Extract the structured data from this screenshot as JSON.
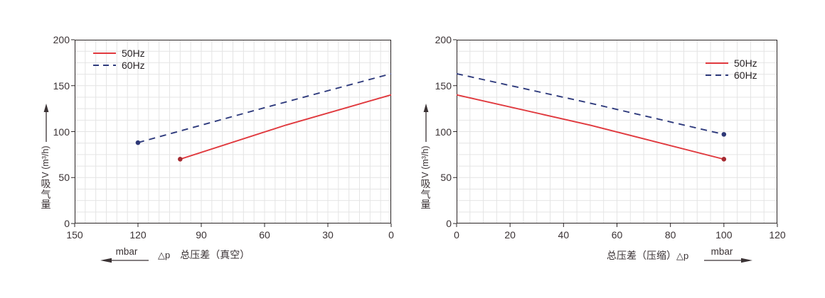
{
  "colors": {
    "red_line": "#e0393e",
    "red_marker": "#a62b32",
    "navy_line": "#2f3b7d",
    "navy_marker": "#2e3877",
    "grid": "#e4e4e4",
    "axis_frame": "#2a2425",
    "text": "#3a3234"
  },
  "chart_data": [
    {
      "id": "vacuum-curve",
      "type": "line",
      "title": "",
      "y_axis": {
        "title_cjk": "吸气量",
        "title_unit": "V (m³/h)",
        "range": [
          0,
          200
        ],
        "ticks": [
          0,
          50,
          100,
          150,
          200
        ]
      },
      "x_axis": {
        "prefix": "△p",
        "label": "总压差（真空）",
        "unit": "mbar",
        "arrow_direction": "left",
        "range": [
          150,
          0
        ],
        "ticks": [
          150,
          120,
          90,
          60,
          30,
          0
        ]
      },
      "grid": {
        "x_step": 5,
        "y_step": 12.5
      },
      "legend": {
        "position": "top-left",
        "items": [
          {
            "label": "50Hz",
            "color": "#e0393e",
            "style": "solid"
          },
          {
            "label": "60Hz",
            "color": "#2f3b7d",
            "style": "dashed"
          }
        ]
      },
      "series": [
        {
          "name": "50Hz",
          "color": "#e0393e",
          "dash": null,
          "marker_point": [
            100,
            70
          ],
          "marker_color": "#a62b32",
          "points": [
            [
              100,
              70
            ],
            [
              50,
              107
            ],
            [
              0,
              140
            ]
          ]
        },
        {
          "name": "60Hz",
          "color": "#2f3b7d",
          "dash": "9 7",
          "marker_point": [
            120,
            88
          ],
          "marker_color": "#2e3877",
          "points": [
            [
              120,
              88
            ],
            [
              60,
              126
            ],
            [
              0,
              163
            ]
          ]
        }
      ]
    },
    {
      "id": "compression-curve",
      "type": "line",
      "title": "",
      "y_axis": {
        "title_cjk": "吸气量",
        "title_unit": "V (m³/h)",
        "range": [
          0,
          200
        ],
        "ticks": [
          0,
          50,
          100,
          150,
          200
        ]
      },
      "x_axis": {
        "label": "总压差（压缩）",
        "suffix": "△p",
        "unit": "mbar",
        "arrow_direction": "right",
        "range": [
          0,
          120
        ],
        "ticks": [
          0,
          20,
          40,
          60,
          80,
          100,
          120
        ]
      },
      "grid": {
        "x_step": 5,
        "y_step": 12.5
      },
      "legend": {
        "position": "top-right",
        "items": [
          {
            "label": "50Hz",
            "color": "#e0393e",
            "style": "solid"
          },
          {
            "label": "60Hz",
            "color": "#2f3b7d",
            "style": "dashed"
          }
        ]
      },
      "series": [
        {
          "name": "50Hz",
          "color": "#e0393e",
          "dash": null,
          "marker_point": [
            100,
            70
          ],
          "marker_color": "#a62b32",
          "points": [
            [
              0,
              140
            ],
            [
              50,
              107
            ],
            [
              100,
              70
            ]
          ]
        },
        {
          "name": "60Hz",
          "color": "#2f3b7d",
          "dash": "9 7",
          "marker_point": [
            100,
            97
          ],
          "marker_color": "#2e3877",
          "points": [
            [
              0,
              163
            ],
            [
              50,
              131
            ],
            [
              100,
              97
            ]
          ]
        }
      ]
    }
  ]
}
